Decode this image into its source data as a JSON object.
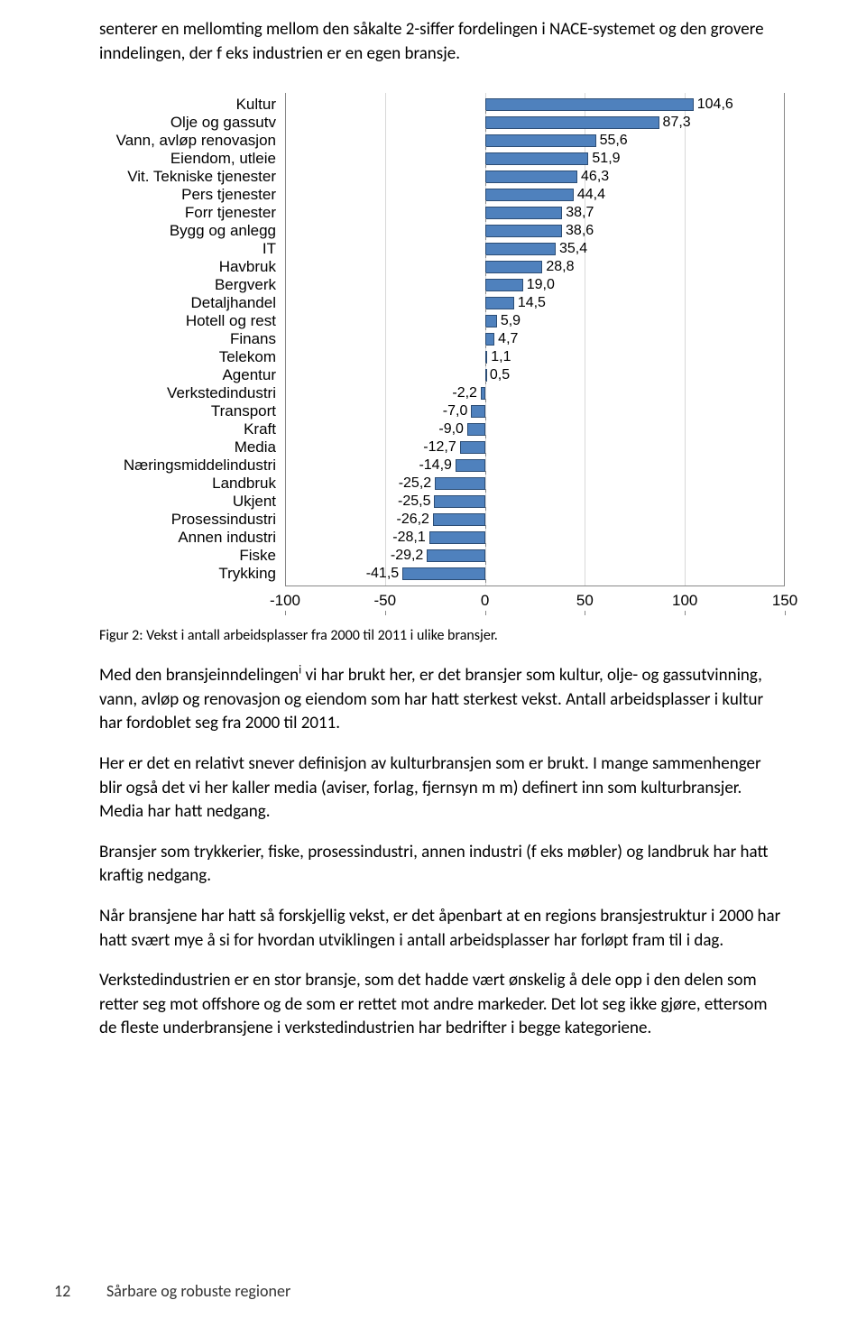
{
  "intro": {
    "p1": "senterer en mellomting mellom den såkalte 2-siffer fordelingen i NACE-systemet og den grovere inndelingen, der f eks industrien er en egen bransje."
  },
  "chart": {
    "type": "bar",
    "orientation": "horizontal",
    "xmin": -100,
    "xmax": 150,
    "xtick_step": 50,
    "xticks": [
      -100,
      -50,
      0,
      50,
      100,
      150
    ],
    "bar_color": "#4f81bd",
    "bar_border_color": "#2c4d75",
    "grid_color": "#d8d8d8",
    "axis_color": "#888888",
    "background_color": "#ffffff",
    "label_fontsize": 17,
    "value_fontsize": 16,
    "categories": [
      "Kultur",
      "Olje og gassutv",
      "Vann, avløp renovasjon",
      "Eiendom, utleie",
      "Vit. Tekniske tjenester",
      "Pers tjenester",
      "Forr tjenester",
      "Bygg og anlegg",
      "IT",
      "Havbruk",
      "Bergverk",
      "Detaljhandel",
      "Hotell og rest",
      "Finans",
      "Telekom",
      "Agentur",
      "Verkstedindustri",
      "Transport",
      "Kraft",
      "Media",
      "Næringsmiddelindustri",
      "Landbruk",
      "Ukjent",
      "Prosessindustri",
      "Annen industri",
      "Fiske",
      "Trykking"
    ],
    "values": [
      104.6,
      87.3,
      55.6,
      51.9,
      46.3,
      44.4,
      38.7,
      38.6,
      35.4,
      28.8,
      19.0,
      14.5,
      5.9,
      4.7,
      1.1,
      0.5,
      -2.2,
      -7.0,
      -9.0,
      -12.7,
      -14.9,
      -25.2,
      -25.5,
      -26.2,
      -28.1,
      -29.2,
      -41.5
    ],
    "value_labels": [
      "104,6",
      "87,3",
      "55,6",
      "51,9",
      "46,3",
      "44,4",
      "38,7",
      "38,6",
      "35,4",
      "28,8",
      "19,0",
      "14,5",
      "5,9",
      "4,7",
      "1,1",
      "0,5",
      "-2,2",
      "-7,0",
      "-9,0",
      "-12,7",
      "-14,9",
      "-25,2",
      "-25,5",
      "-26,2",
      "-28,1",
      "-29,2",
      "-41,5"
    ]
  },
  "caption": "Figur 2: Vekst i antall arbeidsplasser fra 2000 til 2011 i ulike bransjer.",
  "body": {
    "p2a": "Med den bransjeinndelingen",
    "p2sup": "i",
    "p2b": " vi har brukt her, er det bransjer som kultur, olje- og gassutvinning, vann, avløp og renovasjon og eiendom som har hatt sterkest vekst. Antall arbeidsplasser i kultur har fordoblet seg fra 2000 til 2011.",
    "p3": "Her er det en relativt snever definisjon av kulturbransjen som er brukt. I mange sammenhenger blir også det vi her kaller media (aviser, forlag, fjernsyn m m) definert inn som kulturbransjer. Media har hatt nedgang.",
    "p4": "Bransjer som trykkerier, fiske, prosessindustri, annen industri (f eks møbler) og landbruk har hatt kraftig nedgang.",
    "p5": "Når bransjene har hatt så forskjellig vekst, er det åpenbart at en regions bransjestruktur i 2000 har hatt svært mye å si for hvordan utviklingen i antall arbeidsplasser har forløpt fram til i dag.",
    "p6": "Verkstedindustrien er en stor bransje, som det hadde vært ønskelig å dele opp i den delen som retter seg mot offshore og de som er rettet mot andre markeder. Det lot seg ikke gjøre, ettersom de fleste underbransjene i verkstedindustrien har bedrifter i begge kategoriene."
  },
  "footer": {
    "page_num": "12",
    "title": "Sårbare og robuste regioner"
  }
}
